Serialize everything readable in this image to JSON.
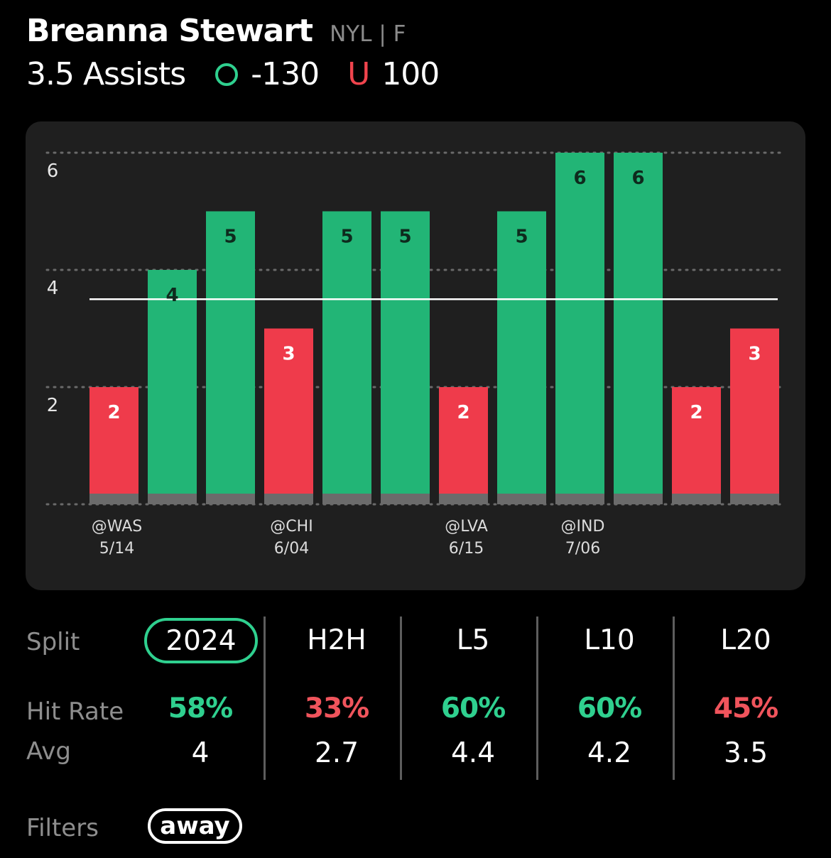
{
  "header": {
    "player_name": "Breanna Stewart",
    "team_pos": "NYL | F",
    "line_label": "3.5 Assists",
    "over_odds": "-130",
    "under_glyph": "U",
    "under_odds": "100"
  },
  "colors": {
    "over": "#22b576",
    "under": "#ef3b4b",
    "accent_green": "#2fd08f",
    "accent_red": "#f0545c",
    "card_bg": "#1f1f1f"
  },
  "chart_data": {
    "type": "bar",
    "values": [
      2,
      4,
      5,
      3,
      5,
      5,
      2,
      5,
      6,
      6,
      2,
      3
    ],
    "x_labels": [
      "@WAS\n5/14",
      "",
      "",
      "@CHI\n6/04",
      "",
      "",
      "@LVA\n6/15",
      "",
      "@IND\n7/06",
      "",
      "",
      ""
    ],
    "y_ticks": [
      6,
      4,
      2
    ],
    "ylim": [
      0,
      6
    ],
    "line_value": 3.5,
    "grid": "dotted"
  },
  "stats": {
    "labels": {
      "split": "Split",
      "hit_rate": "Hit Rate",
      "avg": "Avg"
    },
    "columns": [
      {
        "split": "2024",
        "selected": true,
        "hit_rate": "58%",
        "hit_color": "green",
        "avg": "4"
      },
      {
        "split": "H2H",
        "selected": false,
        "hit_rate": "33%",
        "hit_color": "red",
        "avg": "2.7"
      },
      {
        "split": "L5",
        "selected": false,
        "hit_rate": "60%",
        "hit_color": "green",
        "avg": "4.4"
      },
      {
        "split": "L10",
        "selected": false,
        "hit_rate": "60%",
        "hit_color": "green",
        "avg": "4.2"
      },
      {
        "split": "L20",
        "selected": false,
        "hit_rate": "45%",
        "hit_color": "red",
        "avg": "3.5"
      }
    ]
  },
  "filters": {
    "label": "Filters",
    "chip": "away"
  }
}
